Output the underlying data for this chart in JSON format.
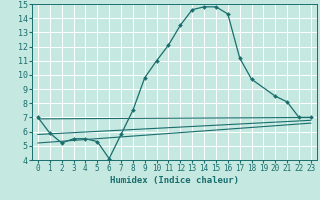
{
  "xlabel": "Humidex (Indice chaleur)",
  "bg_color": "#c5e8e0",
  "grid_color": "#ffffff",
  "line_color": "#1a6e6e",
  "xlim": [
    -0.5,
    23.5
  ],
  "ylim": [
    4,
    15
  ],
  "xticks": [
    0,
    1,
    2,
    3,
    4,
    5,
    6,
    7,
    8,
    9,
    10,
    11,
    12,
    13,
    14,
    15,
    16,
    17,
    18,
    19,
    20,
    21,
    22,
    23
  ],
  "yticks": [
    4,
    5,
    6,
    7,
    8,
    9,
    10,
    11,
    12,
    13,
    14,
    15
  ],
  "main_x": [
    0,
    1,
    2,
    3,
    4,
    5,
    6,
    7,
    8,
    9,
    10,
    11,
    12,
    13,
    14,
    15,
    16,
    17,
    18,
    20,
    21,
    22,
    23
  ],
  "main_y": [
    7.0,
    5.9,
    5.2,
    5.5,
    5.5,
    5.3,
    4.1,
    5.8,
    7.5,
    9.8,
    11.0,
    12.1,
    13.5,
    14.6,
    14.8,
    14.8,
    14.3,
    11.2,
    9.7,
    8.5,
    8.1,
    7.0,
    7.0
  ],
  "fan_lines": [
    {
      "x": [
        0,
        23
      ],
      "y": [
        6.9,
        7.0
      ]
    },
    {
      "x": [
        0,
        23
      ],
      "y": [
        5.8,
        6.8
      ]
    },
    {
      "x": [
        0,
        23
      ],
      "y": [
        5.2,
        6.6
      ]
    }
  ]
}
